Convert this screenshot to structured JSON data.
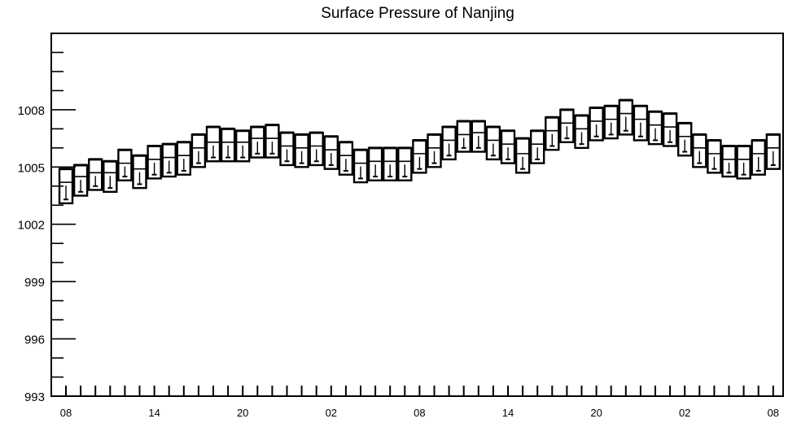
{
  "chart_data": {
    "type": "box",
    "title": "Surface Pressure of Nanjing",
    "xlabel": "",
    "ylabel": "",
    "ylim": [
      993,
      1012
    ],
    "y_ticks": [
      993,
      996,
      999,
      1002,
      1005,
      1008
    ],
    "x_tick_labels": [
      "08",
      "14",
      "20",
      "02",
      "08",
      "14",
      "20",
      "02",
      "08"
    ],
    "x_tick_label_hours_index": [
      0,
      6,
      12,
      18,
      24,
      30,
      36,
      42,
      48
    ],
    "grid": false,
    "series": [
      {
        "hour_index": [
          0,
          1,
          2,
          3,
          4,
          5,
          6,
          7,
          8,
          9,
          10,
          11,
          12,
          13,
          14,
          15,
          16,
          17,
          18,
          19,
          20,
          21,
          22,
          23,
          24,
          25,
          26,
          27,
          28,
          29,
          30,
          31,
          32,
          33,
          34,
          35,
          36,
          37,
          38,
          39,
          40,
          41,
          42,
          43,
          44,
          45,
          46,
          47,
          48
        ],
        "whisker_high": [
          1004.9,
          1005.1,
          1005.4,
          1005.3,
          1005.9,
          1005.6,
          1006.1,
          1006.2,
          1006.3,
          1006.7,
          1007.1,
          1007.0,
          1006.9,
          1007.1,
          1007.2,
          1006.8,
          1006.7,
          1006.8,
          1006.6,
          1006.3,
          1005.9,
          1006.0,
          1006.0,
          1006.0,
          1006.4,
          1006.7,
          1007.1,
          1007.4,
          1007.4,
          1007.1,
          1006.9,
          1006.5,
          1006.9,
          1007.6,
          1008.0,
          1007.7,
          1008.1,
          1008.2,
          1008.5,
          1008.2,
          1007.9,
          1007.8,
          1007.3,
          1006.7,
          1006.4,
          1006.1,
          1006.1,
          1006.4,
          1006.7
        ],
        "q3": [
          1004.9,
          1005.1,
          1005.4,
          1005.3,
          1005.9,
          1005.6,
          1006.1,
          1006.2,
          1006.3,
          1006.7,
          1007.1,
          1007.0,
          1006.9,
          1007.1,
          1007.2,
          1006.8,
          1006.7,
          1006.8,
          1006.6,
          1006.3,
          1005.9,
          1006.0,
          1006.0,
          1006.0,
          1006.4,
          1006.7,
          1007.1,
          1007.4,
          1007.4,
          1007.1,
          1006.9,
          1006.5,
          1006.9,
          1007.6,
          1008.0,
          1007.7,
          1008.1,
          1008.2,
          1008.5,
          1008.2,
          1007.9,
          1007.8,
          1007.3,
          1006.7,
          1006.4,
          1006.1,
          1006.1,
          1006.4,
          1006.7
        ],
        "median": [
          1004.2,
          1004.5,
          1004.7,
          1004.7,
          1005.2,
          1004.9,
          1005.4,
          1005.5,
          1005.6,
          1006.0,
          1006.3,
          1006.3,
          1006.3,
          1006.5,
          1006.5,
          1006.1,
          1006.0,
          1006.1,
          1005.9,
          1005.6,
          1005.2,
          1005.3,
          1005.3,
          1005.3,
          1005.7,
          1006.0,
          1006.4,
          1006.7,
          1006.8,
          1006.4,
          1006.2,
          1005.7,
          1006.2,
          1006.9,
          1007.3,
          1007.0,
          1007.4,
          1007.5,
          1007.8,
          1007.5,
          1007.2,
          1007.1,
          1006.6,
          1006.0,
          1005.7,
          1005.4,
          1005.4,
          1005.7,
          1006.0
        ],
        "q1": [
          1003.1,
          1003.5,
          1003.8,
          1003.7,
          1004.3,
          1003.9,
          1004.4,
          1004.5,
          1004.6,
          1005.0,
          1005.3,
          1005.3,
          1005.3,
          1005.5,
          1005.5,
          1005.1,
          1005.0,
          1005.1,
          1004.9,
          1004.6,
          1004.2,
          1004.3,
          1004.3,
          1004.3,
          1004.7,
          1005.0,
          1005.4,
          1005.8,
          1005.8,
          1005.4,
          1005.2,
          1004.7,
          1005.2,
          1005.9,
          1006.3,
          1006.0,
          1006.4,
          1006.5,
          1006.7,
          1006.4,
          1006.2,
          1006.1,
          1005.6,
          1005.0,
          1004.7,
          1004.5,
          1004.4,
          1004.6,
          1004.9
        ],
        "whisker_low": [
          1003.3,
          1003.7,
          1004.0,
          1003.9,
          1004.5,
          1004.1,
          1004.6,
          1004.7,
          1004.8,
          1005.2,
          1005.5,
          1005.5,
          1005.5,
          1005.7,
          1005.7,
          1005.3,
          1005.2,
          1005.3,
          1005.1,
          1004.8,
          1004.4,
          1004.5,
          1004.5,
          1004.5,
          1004.9,
          1005.2,
          1005.6,
          1006.0,
          1006.0,
          1005.6,
          1005.4,
          1004.9,
          1005.4,
          1006.1,
          1006.5,
          1006.2,
          1006.6,
          1006.7,
          1006.9,
          1006.6,
          1006.4,
          1006.3,
          1005.8,
          1005.2,
          1004.9,
          1004.7,
          1004.6,
          1004.8,
          1005.1
        ]
      }
    ]
  }
}
